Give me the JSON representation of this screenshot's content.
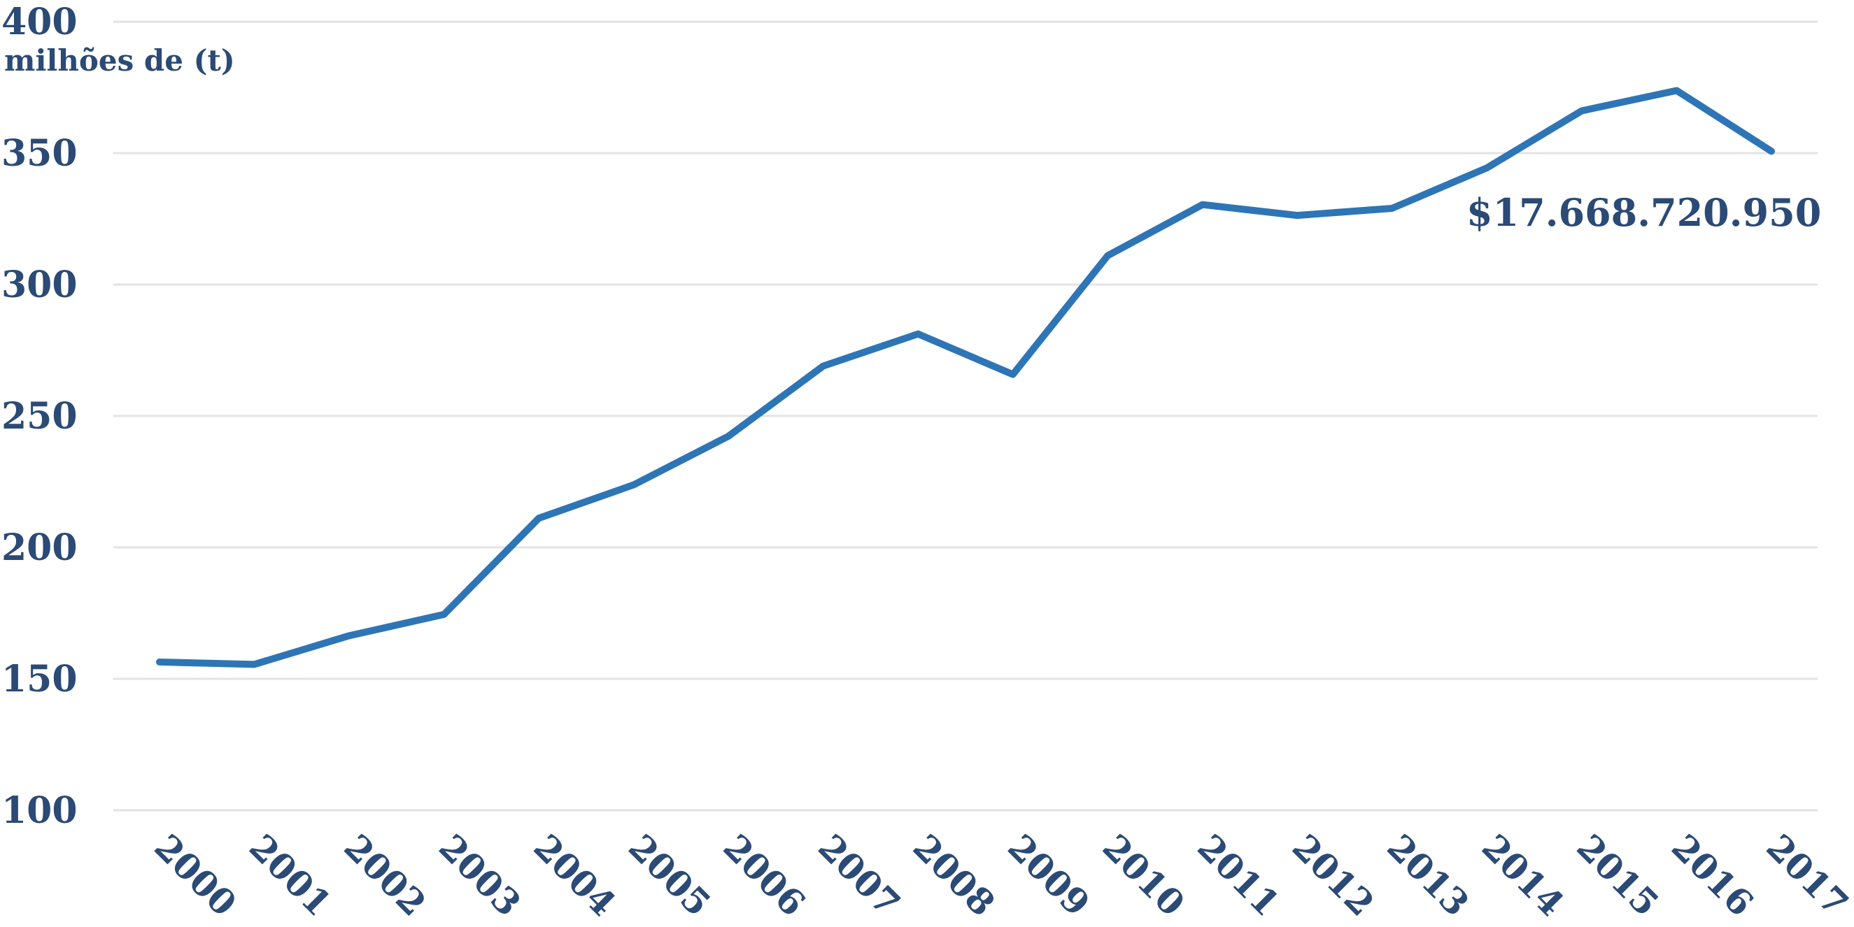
{
  "chart_data": {
    "type": "line",
    "title": "",
    "xlabel": "",
    "ylabel": "milhões de (t)",
    "ylim": [
      100,
      400
    ],
    "yticks": [
      100,
      150,
      200,
      250,
      300,
      350,
      400
    ],
    "grid": true,
    "categories": [
      "2000",
      "2001",
      "2002",
      "2003",
      "2004",
      "2005",
      "2006",
      "2007",
      "2008",
      "2009",
      "2010",
      "2011",
      "2012",
      "2013",
      "2014",
      "2015",
      "2016",
      "2017"
    ],
    "series": [
      {
        "values": [
          156.4,
          155.5,
          166.4,
          174.5,
          211.1,
          223.8,
          242.3,
          269.0,
          281.2,
          265.8,
          311.0,
          330.4,
          326.3,
          329.0,
          344.4,
          366.1,
          373.8,
          350.7
        ],
        "color": "#2e75b6"
      }
    ],
    "annotation": "$17.668.720.950",
    "colors": {
      "text": "#2b4a75",
      "grid": "#e3e3e3",
      "line": "#2e75b6"
    }
  }
}
